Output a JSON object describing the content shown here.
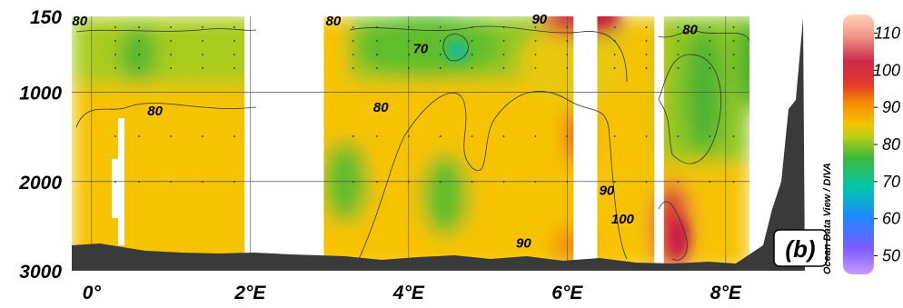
{
  "chart_data": {
    "type": "heatmap",
    "title": "",
    "xlabel": "",
    "ylabel": "",
    "xlim": [
      -0.25,
      8.3
    ],
    "ylim": [
      3000,
      0
    ],
    "x_ticks": [
      {
        "value": 0,
        "label": "0°"
      },
      {
        "value": 2,
        "label": "2°E"
      },
      {
        "value": 4,
        "label": "4°E"
      },
      {
        "value": 6,
        "label": "6°E"
      },
      {
        "value": 8,
        "label": "8°E"
      }
    ],
    "y_ticks": [
      {
        "value": 150,
        "label": "150"
      },
      {
        "value": 1000,
        "label": "1000"
      },
      {
        "value": 2000,
        "label": "2000"
      },
      {
        "value": 3000,
        "label": "3000"
      }
    ],
    "gridlines_y": [
      1000,
      2000
    ],
    "gridlines_x": [
      0,
      2,
      4,
      6,
      8
    ],
    "panel_label": "(b)",
    "colorbar": {
      "label": "Ocean Data View / DIVA",
      "range": [
        45,
        115
      ],
      "ticks": [
        50,
        60,
        70,
        80,
        90,
        100,
        110
      ]
    },
    "contour_labels": [
      {
        "text": "80",
        "x": -0.15,
        "y": 250
      },
      {
        "text": "80",
        "x": 3.05,
        "y": 250
      },
      {
        "text": "90",
        "x": 5.65,
        "y": 230
      },
      {
        "text": "70",
        "x": 4.15,
        "y": 560
      },
      {
        "text": "80",
        "x": 7.55,
        "y": 350
      },
      {
        "text": "80",
        "x": 0.8,
        "y": 1260
      },
      {
        "text": "80",
        "x": 3.65,
        "y": 1220
      },
      {
        "text": "90",
        "x": 6.5,
        "y": 2150
      },
      {
        "text": "100",
        "x": 6.7,
        "y": 2470
      },
      {
        "text": "90",
        "x": 5.45,
        "y": 2740
      }
    ],
    "data_gaps": [
      [
        1.93,
        2.93
      ],
      [
        6.08,
        6.38
      ],
      [
        7.1,
        7.22
      ]
    ]
  }
}
